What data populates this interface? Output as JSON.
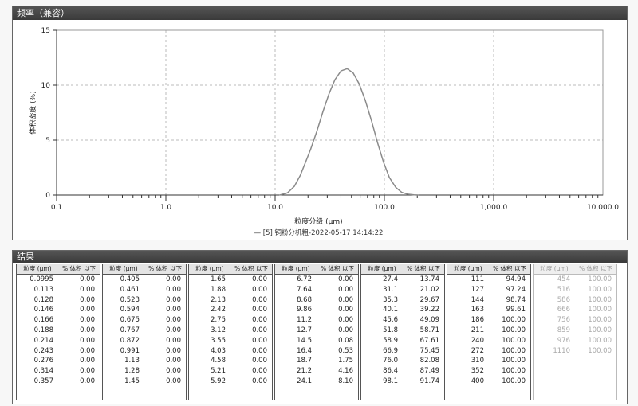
{
  "chart_title": "频率（兼容）",
  "chart_data": {
    "type": "line",
    "title": "",
    "xlabel": "粒度分级 (µm)",
    "ylabel": "体积密度 (%)",
    "x_scale": "log",
    "xlim": [
      0.1,
      10000
    ],
    "ylim": [
      0,
      15
    ],
    "x_ticks": [
      "0.1",
      "1.0",
      "10.0",
      "100.0",
      "1,000.0",
      "10,000.0"
    ],
    "y_ticks": [
      "0",
      "5",
      "10",
      "15"
    ],
    "grid": true,
    "legend": "— [5] 铜粉分机粗-2022-05-17 14:14:22",
    "series": [
      {
        "name": "[5] 铜粉分机粗-2022-05-17 14:14:22",
        "color": "#8a8a8a",
        "x": [
          11,
          13,
          15,
          17,
          19,
          21.2,
          24.1,
          27.4,
          31.1,
          35.3,
          40.1,
          45.6,
          51.8,
          58.9,
          66.9,
          76,
          86.4,
          98.1,
          111,
          127,
          144,
          163,
          186,
          205
        ],
        "y": [
          0,
          0.2,
          0.8,
          1.8,
          3.0,
          4.2,
          5.8,
          7.6,
          9.2,
          10.5,
          11.3,
          11.5,
          11.1,
          10.1,
          8.6,
          6.8,
          4.8,
          3.0,
          1.6,
          0.7,
          0.25,
          0.08,
          0.02,
          0
        ]
      }
    ]
  },
  "results_title": "结果",
  "col_header": {
    "size": "粒度 (µm)",
    "pct": "% 体积 以下"
  },
  "table": {
    "columns": [
      [
        [
          "0.0995",
          "0.00"
        ],
        [
          "0.113",
          "0.00"
        ],
        [
          "0.128",
          "0.00"
        ],
        [
          "0.146",
          "0.00"
        ],
        [
          "0.166",
          "0.00"
        ],
        [
          "0.188",
          "0.00"
        ],
        [
          "0.214",
          "0.00"
        ],
        [
          "0.243",
          "0.00"
        ],
        [
          "0.276",
          "0.00"
        ],
        [
          "0.314",
          "0.00"
        ],
        [
          "0.357",
          "0.00"
        ]
      ],
      [
        [
          "0.405",
          "0.00"
        ],
        [
          "0.461",
          "0.00"
        ],
        [
          "0.523",
          "0.00"
        ],
        [
          "0.594",
          "0.00"
        ],
        [
          "0.675",
          "0.00"
        ],
        [
          "0.767",
          "0.00"
        ],
        [
          "0.872",
          "0.00"
        ],
        [
          "0.991",
          "0.00"
        ],
        [
          "1.13",
          "0.00"
        ],
        [
          "1.28",
          "0.00"
        ],
        [
          "1.45",
          "0.00"
        ]
      ],
      [
        [
          "1.65",
          "0.00"
        ],
        [
          "1.88",
          "0.00"
        ],
        [
          "2.13",
          "0.00"
        ],
        [
          "2.42",
          "0.00"
        ],
        [
          "2.75",
          "0.00"
        ],
        [
          "3.12",
          "0.00"
        ],
        [
          "3.55",
          "0.00"
        ],
        [
          "4.03",
          "0.00"
        ],
        [
          "4.58",
          "0.00"
        ],
        [
          "5.21",
          "0.00"
        ],
        [
          "5.92",
          "0.00"
        ]
      ],
      [
        [
          "6.72",
          "0.00"
        ],
        [
          "7.64",
          "0.00"
        ],
        [
          "8.68",
          "0.00"
        ],
        [
          "9.86",
          "0.00"
        ],
        [
          "11.2",
          "0.00"
        ],
        [
          "12.7",
          "0.00"
        ],
        [
          "14.5",
          "0.08"
        ],
        [
          "16.4",
          "0.53"
        ],
        [
          "18.7",
          "1.75"
        ],
        [
          "21.2",
          "4.16"
        ],
        [
          "24.1",
          "8.10"
        ]
      ],
      [
        [
          "27.4",
          "13.74"
        ],
        [
          "31.1",
          "21.02"
        ],
        [
          "35.3",
          "29.67"
        ],
        [
          "40.1",
          "39.22"
        ],
        [
          "45.6",
          "49.09"
        ],
        [
          "51.8",
          "58.71"
        ],
        [
          "58.9",
          "67.61"
        ],
        [
          "66.9",
          "75.45"
        ],
        [
          "76.0",
          "82.08"
        ],
        [
          "86.4",
          "87.49"
        ],
        [
          "98.1",
          "91.74"
        ]
      ],
      [
        [
          "111",
          "94.94"
        ],
        [
          "127",
          "97.24"
        ],
        [
          "144",
          "98.74"
        ],
        [
          "163",
          "99.61"
        ],
        [
          "186",
          "100.00"
        ],
        [
          "211",
          "100.00"
        ],
        [
          "240",
          "100.00"
        ],
        [
          "272",
          "100.00"
        ],
        [
          "310",
          "100.00"
        ],
        [
          "352",
          "100.00"
        ],
        [
          "400",
          "100.00"
        ]
      ],
      [
        [
          "454",
          "100.00"
        ],
        [
          "516",
          "100.00"
        ],
        [
          "586",
          "100.00"
        ],
        [
          "666",
          "100.00"
        ],
        [
          "756",
          "100.00"
        ],
        [
          "859",
          "100.00"
        ],
        [
          "976",
          "100.00"
        ],
        [
          "1110",
          "100.00"
        ]
      ]
    ]
  }
}
